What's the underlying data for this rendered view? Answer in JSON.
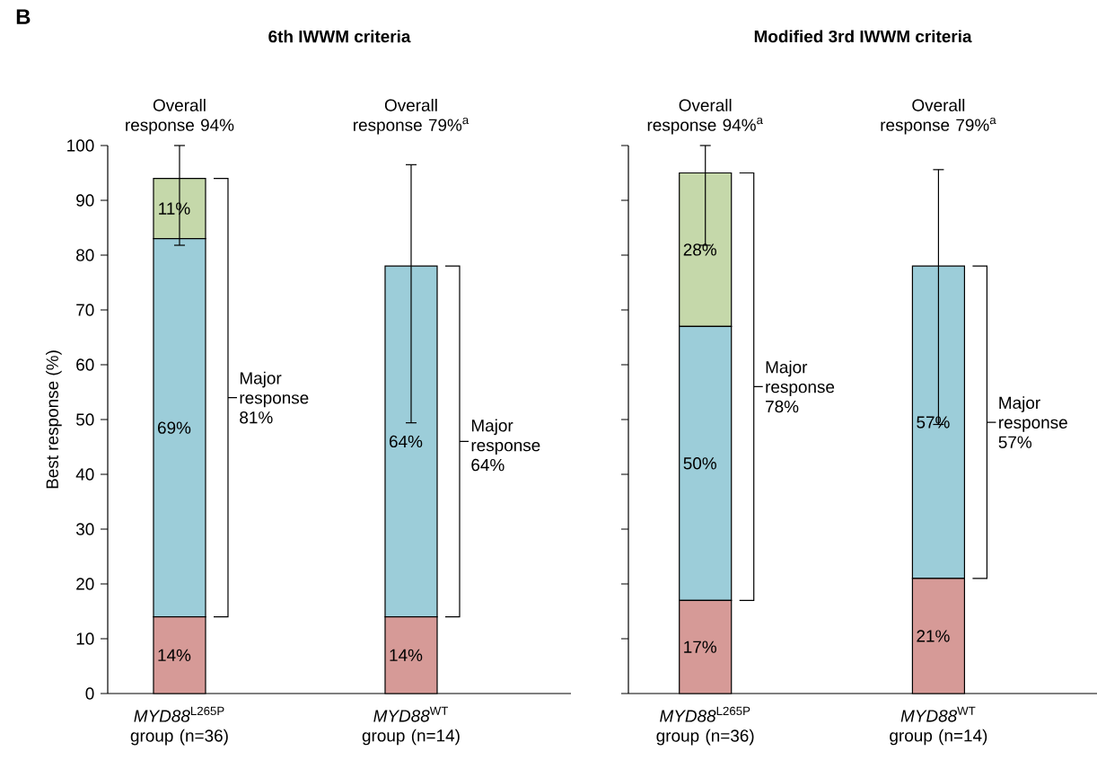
{
  "chart_data": [
    {
      "type": "bar",
      "stacked": true,
      "title": "6th IWWM criteria",
      "ylabel": "Best response (%)",
      "categories": [
        "*MYD88*$^{L265P}$ group (n=36)",
        "*MYD88*$^{WT}$ group (n=14)"
      ],
      "series": [
        {
          "color": "#d69a97",
          "values": [
            14,
            14
          ],
          "value_labels": [
            "14%",
            "14%"
          ]
        },
        {
          "color": "#9ccdd9",
          "values": [
            69,
            64
          ],
          "value_labels": [
            "69%",
            "64%"
          ],
          "errors": [
            null,
            [
              49.4,
              96.5
            ]
          ]
        },
        {
          "color": "#c5d8aa",
          "values": [
            11,
            null
          ],
          "value_labels": [
            "11%",
            null
          ],
          "errors": [
            [
              81.8,
              100
            ],
            null
          ]
        }
      ],
      "ylim": [
        0,
        100
      ],
      "yticks": [
        0,
        10,
        20,
        30,
        40,
        50,
        60,
        70,
        80,
        90,
        100
      ],
      "annotations": [
        "B",
        "Overall response 94%",
        "Overall response 79%$^{a}$",
        "Major response 81%",
        "Major response 64%"
      ]
    },
    {
      "type": "bar",
      "stacked": true,
      "title": "Modified 3rd IWWM criteria",
      "categories": [
        "*MYD88*$^{L265P}$ group (n=36)",
        "*MYD88*$^{WT}$ group (n=14)"
      ],
      "series": [
        {
          "color": "#d69a97",
          "values": [
            17,
            21
          ],
          "value_labels": [
            "17%",
            "21%"
          ]
        },
        {
          "color": "#9ccdd9",
          "values": [
            50,
            57
          ],
          "value_labels": [
            "50%",
            "57%"
          ],
          "errors": [
            null,
            [
              49.1,
              95.6
            ]
          ]
        },
        {
          "color": "#c5d8aa",
          "values": [
            28,
            null
          ],
          "value_labels": [
            "28%",
            null
          ],
          "errors": [
            [
              81.8,
              100
            ],
            null
          ]
        }
      ],
      "ylim": [
        0,
        100
      ],
      "yticks": [
        0,
        10,
        20,
        30,
        40,
        50,
        60,
        70,
        80,
        90,
        100
      ],
      "tick_labels": "x",
      "annotations": [
        "Overall response 94%$^{a}$",
        "Overall response 79%$^{a}$",
        "Major response 78%",
        "Major response 57%"
      ]
    }
  ]
}
